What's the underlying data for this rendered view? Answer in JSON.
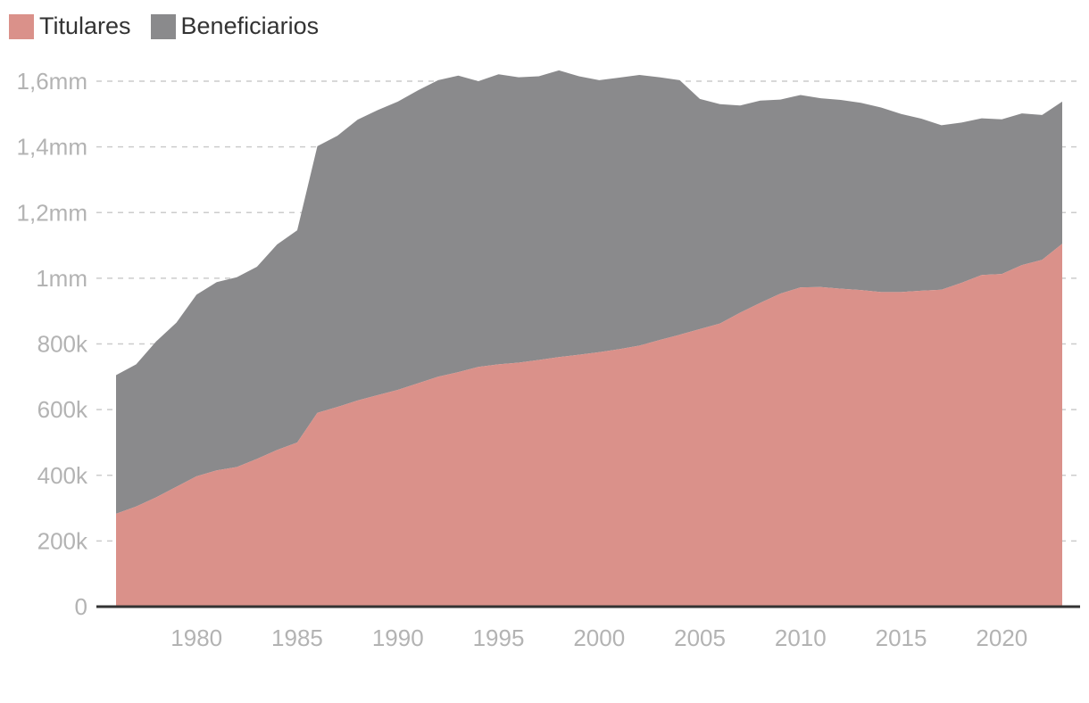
{
  "chart_data": {
    "type": "area",
    "stacked": true,
    "legend": {
      "placement": "top-left"
    },
    "grid": true,
    "colors": {
      "Titulares": "#da918a",
      "Beneficiarios": "#8a8a8c",
      "grid": "#cccccc",
      "axis": "#333333",
      "tick_text": "#b3b3b3"
    },
    "x": [
      1976,
      1977,
      1978,
      1979,
      1980,
      1981,
      1982,
      1983,
      1984,
      1985,
      1986,
      1987,
      1988,
      1989,
      1990,
      1991,
      1992,
      1993,
      1994,
      1995,
      1996,
      1997,
      1998,
      1999,
      2000,
      2001,
      2002,
      2003,
      2004,
      2005,
      2006,
      2007,
      2008,
      2009,
      2010,
      2011,
      2012,
      2013,
      2014,
      2015,
      2016,
      2017,
      2018,
      2019,
      2020,
      2021,
      2022,
      2023
    ],
    "series": [
      {
        "name": "Titulares",
        "values": [
          283000,
          305000,
          333000,
          365000,
          397000,
          415000,
          425000,
          450000,
          477000,
          500000,
          590000,
          608000,
          628000,
          644000,
          660000,
          680000,
          700000,
          714000,
          730000,
          738000,
          743000,
          751000,
          760000,
          767000,
          775000,
          784000,
          795000,
          812000,
          828000,
          845000,
          862000,
          895000,
          925000,
          953000,
          972000,
          973000,
          968000,
          964000,
          958000,
          958000,
          962000,
          965000,
          986000,
          1010000,
          1013000,
          1040000,
          1056000,
          1105000
        ]
      },
      {
        "name": "Beneficiarios",
        "values": [
          422000,
          433000,
          475000,
          500000,
          553000,
          573000,
          578000,
          585000,
          626000,
          646000,
          812000,
          826000,
          855000,
          868000,
          878000,
          892000,
          903000,
          903000,
          870000,
          883000,
          869000,
          864000,
          873000,
          848000,
          828000,
          827000,
          824000,
          800000,
          775000,
          701000,
          668000,
          631000,
          616000,
          591000,
          586000,
          575000,
          575000,
          570000,
          562000,
          542000,
          524000,
          501000,
          488000,
          477000,
          471000,
          462000,
          441000,
          433000
        ]
      }
    ],
    "x_ticks": [
      1980,
      1985,
      1990,
      1995,
      2000,
      2005,
      2010,
      2015,
      2020
    ],
    "y_ticks": [
      {
        "value": 0,
        "label": "0"
      },
      {
        "value": 200000,
        "label": "200k"
      },
      {
        "value": 400000,
        "label": "400k"
      },
      {
        "value": 600000,
        "label": "600k"
      },
      {
        "value": 800000,
        "label": "800k"
      },
      {
        "value": 1000000,
        "label": "1mm"
      },
      {
        "value": 1200000,
        "label": "1,2mm"
      },
      {
        "value": 1400000,
        "label": "1,4mm"
      },
      {
        "value": 1600000,
        "label": "1,6mm"
      }
    ],
    "xlim": [
      1975,
      2024
    ],
    "ylim": [
      0,
      1600000
    ],
    "title": "",
    "xlabel": "",
    "ylabel": ""
  }
}
